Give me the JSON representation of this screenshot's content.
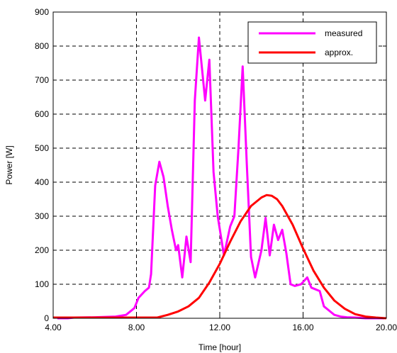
{
  "chart_data": {
    "type": "line",
    "xlabel": "Time [hour]",
    "ylabel": "Power [W]",
    "xlim": [
      4,
      20
    ],
    "ylim": [
      0,
      900
    ],
    "x_ticks": [
      4,
      8,
      12,
      16,
      20
    ],
    "x_tick_labels": [
      "4.00",
      "8.00",
      "12.00",
      "16.00",
      "20.00"
    ],
    "y_ticks": [
      0,
      100,
      200,
      300,
      400,
      500,
      600,
      700,
      800,
      900
    ],
    "y_tick_labels": [
      "0",
      "100",
      "200",
      "300",
      "400",
      "500",
      "600",
      "700",
      "800",
      "900"
    ],
    "grid": true,
    "legend_position": "top-right",
    "series": [
      {
        "name": "measured",
        "color": "#ff00ff",
        "x": [
          4.2,
          4.7,
          5.0,
          6.0,
          7.0,
          7.5,
          7.7,
          7.9,
          8.1,
          8.4,
          8.6,
          8.7,
          8.9,
          9.1,
          9.3,
          9.5,
          9.7,
          9.9,
          10.0,
          10.2,
          10.4,
          10.6,
          10.8,
          11.0,
          11.3,
          11.5,
          11.7,
          11.9,
          12.2,
          12.5,
          12.7,
          12.9,
          13.1,
          13.3,
          13.5,
          13.7,
          14.0,
          14.2,
          14.4,
          14.6,
          14.8,
          15.0,
          15.2,
          15.4,
          15.6,
          15.9,
          16.2,
          16.4,
          16.6,
          16.8,
          17.0,
          17.3,
          17.5,
          17.8,
          18.1,
          18.5,
          19.0,
          19.4,
          19.9
        ],
        "y": [
          0,
          0,
          2,
          3,
          5,
          10,
          20,
          30,
          60,
          80,
          90,
          130,
          390,
          460,
          415,
          330,
          260,
          200,
          215,
          120,
          240,
          165,
          640,
          825,
          640,
          760,
          430,
          300,
          185,
          270,
          300,
          500,
          740,
          450,
          180,
          120,
          200,
          295,
          185,
          275,
          230,
          260,
          190,
          100,
          95,
          100,
          120,
          90,
          85,
          80,
          35,
          20,
          10,
          5,
          3,
          2,
          0,
          0,
          0
        ]
      },
      {
        "name": "approx.",
        "color": "#ff0000",
        "x": [
          4.0,
          5.0,
          6.0,
          7.0,
          8.0,
          9.0,
          9.5,
          10.0,
          10.5,
          11.0,
          11.5,
          12.0,
          12.5,
          13.0,
          13.5,
          14.0,
          14.25,
          14.5,
          14.75,
          15.0,
          15.5,
          16.0,
          16.5,
          17.0,
          17.5,
          18.0,
          18.5,
          19.0,
          19.5,
          20.0
        ],
        "y": [
          2,
          2,
          2,
          2,
          2,
          2,
          10,
          20,
          35,
          60,
          105,
          160,
          225,
          285,
          330,
          355,
          362,
          360,
          350,
          330,
          275,
          205,
          140,
          90,
          52,
          28,
          12,
          5,
          2,
          0
        ]
      }
    ]
  }
}
